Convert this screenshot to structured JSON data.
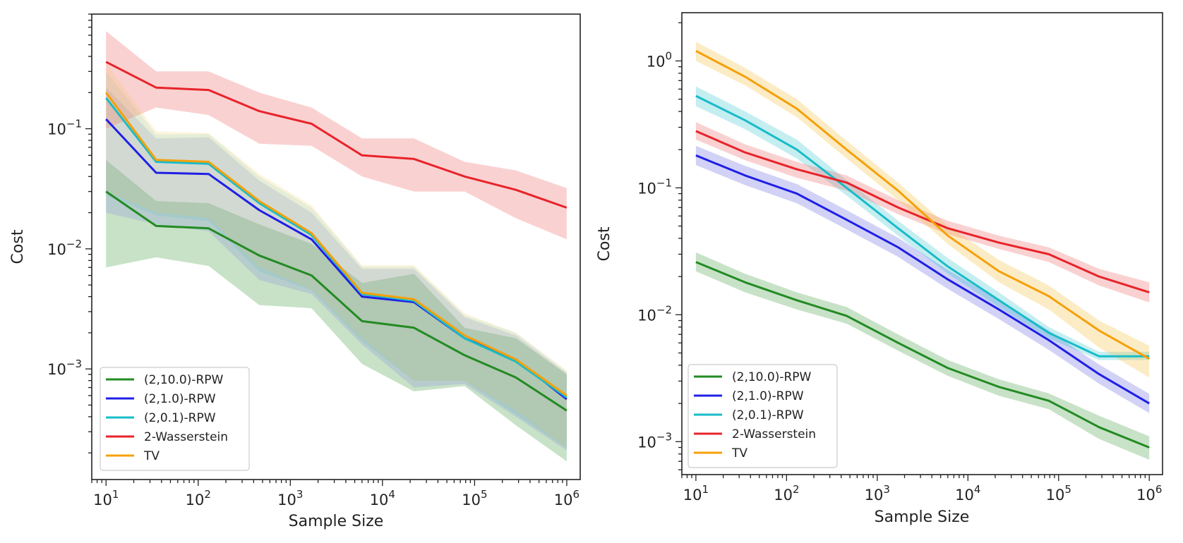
{
  "chart_data": [
    {
      "type": "line",
      "xlabel": "Sample Size",
      "ylabel": "Cost",
      "xscale": "log",
      "yscale": "log",
      "xlim": [
        7,
        1400000
      ],
      "ylim": [
        0.00012,
        0.9
      ],
      "legend_position": "lower-left",
      "x": [
        10,
        35,
        130,
        460,
        1700,
        6000,
        22000,
        78000,
        280000,
        1000000
      ],
      "xticks": [
        {
          "value": 10,
          "base": "10",
          "exp": "1"
        },
        {
          "value": 100,
          "base": "10",
          "exp": "2"
        },
        {
          "value": 1000,
          "base": "10",
          "exp": "3"
        },
        {
          "value": 10000,
          "base": "10",
          "exp": "4"
        },
        {
          "value": 100000,
          "base": "10",
          "exp": "5"
        },
        {
          "value": 1000000,
          "base": "10",
          "exp": "6"
        }
      ],
      "yticks": [
        {
          "value": 0.001,
          "base": "10",
          "exp": "−3"
        },
        {
          "value": 0.01,
          "base": "10",
          "exp": "−2"
        },
        {
          "value": 0.1,
          "base": "10",
          "exp": "−1"
        }
      ],
      "series": [
        {
          "name": "(2,10.0)-RPW",
          "color": "#228b22",
          "fill": "#228b22",
          "opacity": 0.25,
          "values": [
            0.03,
            0.0155,
            0.0148,
            0.0088,
            0.006,
            0.0025,
            0.0022,
            0.0013,
            0.00085,
            0.00045
          ],
          "lower": [
            0.007,
            0.0085,
            0.0072,
            0.0034,
            0.0032,
            0.0011,
            0.00065,
            0.00072,
            0.00034,
            0.00017
          ],
          "upper": [
            0.055,
            0.025,
            0.024,
            0.016,
            0.011,
            0.0052,
            0.0062,
            0.0022,
            0.0018,
            0.0009
          ]
        },
        {
          "name": "(2,1.0)-RPW",
          "color": "#1f1fe6",
          "fill": "#6a6ae0",
          "opacity": 0.18,
          "values": [
            0.12,
            0.043,
            0.042,
            0.021,
            0.012,
            0.004,
            0.0036,
            0.0018,
            0.0012,
            0.00056
          ],
          "lower": [
            0.02,
            0.016,
            0.014,
            0.0055,
            0.0042,
            0.0016,
            0.0007,
            0.00075,
            0.0004,
            0.00021
          ],
          "upper": [
            0.22,
            0.083,
            0.085,
            0.037,
            0.02,
            0.0068,
            0.0068,
            0.0027,
            0.0019,
            0.00092
          ]
        },
        {
          "name": "(2,0.1)-RPW",
          "color": "#17bcc8",
          "fill": "#17bcc8",
          "opacity": 0.12,
          "values": [
            0.18,
            0.053,
            0.051,
            0.024,
            0.013,
            0.0042,
            0.0037,
            0.0018,
            0.00115,
            0.00058
          ],
          "lower": [
            0.028,
            0.019,
            0.017,
            0.0065,
            0.0045,
            0.0017,
            0.0008,
            0.0008,
            0.00042,
            0.00022
          ],
          "upper": [
            0.3,
            0.09,
            0.09,
            0.04,
            0.022,
            0.0071,
            0.0071,
            0.0028,
            0.002,
            0.00095
          ]
        },
        {
          "name": "2-Wasserstein",
          "color": "#e8232a",
          "fill": "#f27a7a",
          "opacity": 0.35,
          "values": [
            0.36,
            0.22,
            0.21,
            0.14,
            0.11,
            0.06,
            0.056,
            0.04,
            0.031,
            0.022
          ],
          "lower": [
            0.1,
            0.15,
            0.13,
            0.075,
            0.072,
            0.04,
            0.03,
            0.03,
            0.018,
            0.012
          ],
          "upper": [
            0.65,
            0.3,
            0.3,
            0.2,
            0.15,
            0.083,
            0.083,
            0.053,
            0.045,
            0.032
          ]
        },
        {
          "name": "TV",
          "color": "#f5a00a",
          "fill": "#f5c040",
          "opacity": 0.18,
          "values": [
            0.2,
            0.055,
            0.053,
            0.025,
            0.0135,
            0.0043,
            0.0038,
            0.0019,
            0.0012,
            0.0006
          ],
          "lower": [
            0.03,
            0.02,
            0.018,
            0.007,
            0.0046,
            0.0018,
            0.0008,
            0.0008,
            0.00045,
            0.00022
          ],
          "upper": [
            0.35,
            0.095,
            0.092,
            0.042,
            0.023,
            0.0073,
            0.0073,
            0.0029,
            0.002,
            0.00097
          ]
        }
      ]
    },
    {
      "type": "line",
      "xlabel": "Sample Size",
      "ylabel": "Cost",
      "xscale": "log",
      "yscale": "log",
      "xlim": [
        7,
        1400000
      ],
      "ylim": [
        0.00055,
        2.4
      ],
      "legend_position": "lower-left",
      "x": [
        10,
        35,
        130,
        460,
        1700,
        6000,
        22000,
        78000,
        280000,
        1000000
      ],
      "xticks": [
        {
          "value": 10,
          "base": "10",
          "exp": "1"
        },
        {
          "value": 100,
          "base": "10",
          "exp": "2"
        },
        {
          "value": 1000,
          "base": "10",
          "exp": "3"
        },
        {
          "value": 10000,
          "base": "10",
          "exp": "4"
        },
        {
          "value": 100000,
          "base": "10",
          "exp": "5"
        },
        {
          "value": 1000000,
          "base": "10",
          "exp": "6"
        }
      ],
      "yticks": [
        {
          "value": 0.001,
          "base": "10",
          "exp": "−3"
        },
        {
          "value": 0.01,
          "base": "10",
          "exp": "−2"
        },
        {
          "value": 0.1,
          "base": "10",
          "exp": "−1"
        },
        {
          "value": 1,
          "base": "10",
          "exp": "0"
        }
      ],
      "series": [
        {
          "name": "(2,10.0)-RPW",
          "color": "#228b22",
          "fill": "#228b22",
          "opacity": 0.25,
          "values": [
            0.026,
            0.018,
            0.013,
            0.0098,
            0.006,
            0.0038,
            0.0027,
            0.0021,
            0.0013,
            0.0009
          ],
          "lower": [
            0.022,
            0.015,
            0.011,
            0.0085,
            0.0052,
            0.0033,
            0.0023,
            0.0018,
            0.00105,
            0.00072
          ],
          "upper": [
            0.031,
            0.021,
            0.015,
            0.0115,
            0.007,
            0.0044,
            0.0031,
            0.0024,
            0.0016,
            0.0011
          ]
        },
        {
          "name": "(2,1.0)-RPW",
          "color": "#1f1fe6",
          "fill": "#6a6ae0",
          "opacity": 0.3,
          "values": [
            0.18,
            0.125,
            0.09,
            0.056,
            0.034,
            0.019,
            0.011,
            0.0063,
            0.0034,
            0.002
          ]
        },
        {
          "name": "(2,0.1)-RPW",
          "color": "#17bcc8",
          "fill": "#17bcc8",
          "opacity": 0.25,
          "values": [
            0.53,
            0.34,
            0.2,
            0.1,
            0.048,
            0.024,
            0.013,
            0.0072,
            0.0047,
            0.0047
          ],
          "lower": [
            0.44,
            0.29,
            0.17,
            0.087,
            0.042,
            0.021,
            0.0115,
            0.0065,
            0.0044,
            0.0044
          ],
          "upper": [
            0.63,
            0.4,
            0.24,
            0.115,
            0.055,
            0.028,
            0.015,
            0.008,
            0.0051,
            0.0051
          ]
        },
        {
          "name": "2-Wasserstein",
          "color": "#e8232a",
          "fill": "#f27a7a",
          "opacity": 0.35,
          "values": [
            0.28,
            0.19,
            0.14,
            0.11,
            0.07,
            0.048,
            0.037,
            0.03,
            0.02,
            0.015
          ],
          "lower": [
            0.24,
            0.165,
            0.12,
            0.095,
            0.062,
            0.043,
            0.033,
            0.026,
            0.017,
            0.0125
          ],
          "upper": [
            0.33,
            0.22,
            0.16,
            0.125,
            0.08,
            0.055,
            0.042,
            0.034,
            0.023,
            0.018
          ]
        },
        {
          "name": "TV",
          "color": "#f5a00a",
          "fill": "#f5c040",
          "opacity": 0.3,
          "values": [
            1.2,
            0.75,
            0.42,
            0.2,
            0.095,
            0.042,
            0.022,
            0.014,
            0.0075,
            0.0045
          ],
          "lower": [
            1.0,
            0.64,
            0.36,
            0.17,
            0.08,
            0.036,
            0.018,
            0.011,
            0.0055,
            0.0032
          ],
          "upper": [
            1.42,
            0.88,
            0.5,
            0.235,
            0.11,
            0.05,
            0.027,
            0.017,
            0.009,
            0.0057
          ]
        }
      ]
    }
  ]
}
